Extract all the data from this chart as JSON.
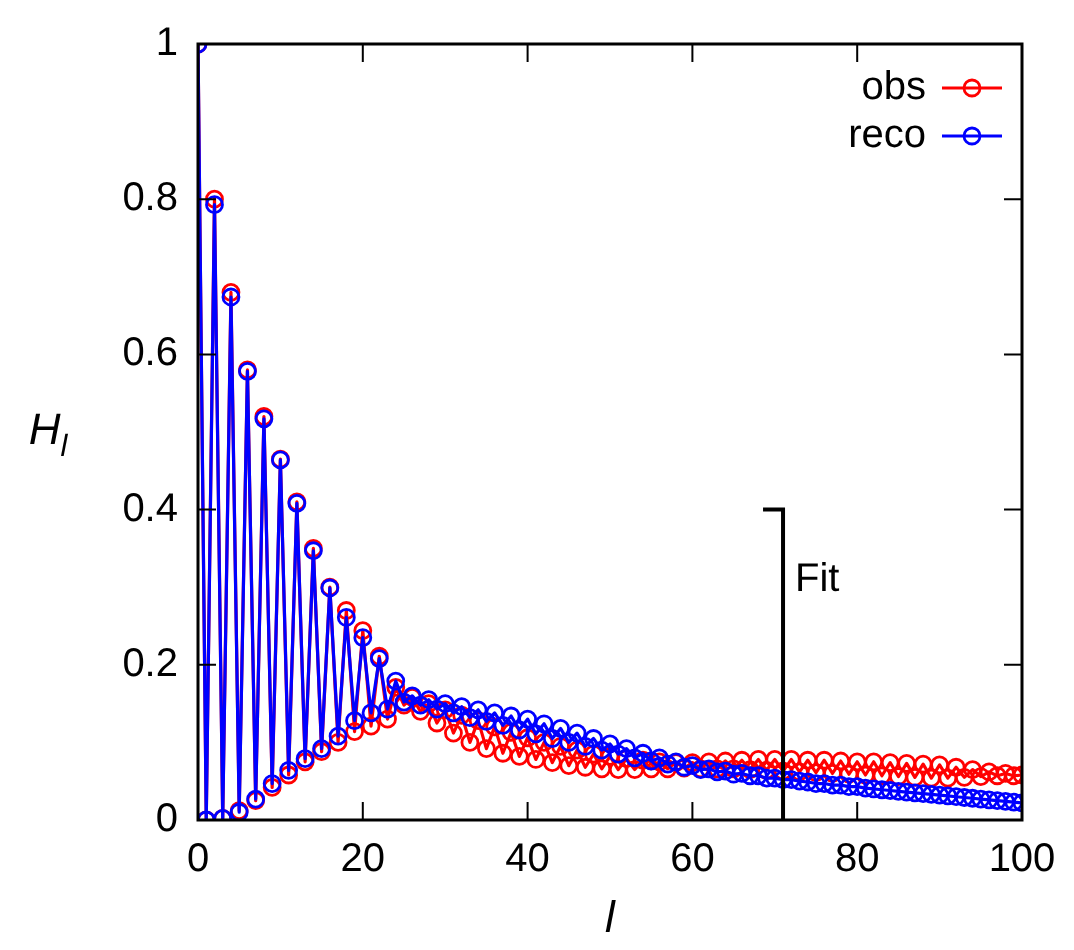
{
  "chart_data": {
    "type": "line",
    "xlabel": "l",
    "ylabel": "H$_{l}$",
    "xlim": [
      0,
      100
    ],
    "ylim": [
      0,
      1
    ],
    "xticks": [
      0,
      20,
      40,
      60,
      80,
      100
    ],
    "yticks": [
      0,
      0.2,
      0.4,
      0.6,
      0.8,
      1
    ],
    "marker": "circle",
    "legend": "top right",
    "x": [
      0,
      1,
      2,
      3,
      4,
      5,
      6,
      7,
      8,
      9,
      10,
      11,
      12,
      13,
      14,
      15,
      16,
      17,
      18,
      19,
      20,
      21,
      22,
      23,
      24,
      25,
      26,
      27,
      28,
      29,
      30,
      31,
      32,
      33,
      34,
      35,
      36,
      37,
      38,
      39,
      40,
      41,
      42,
      43,
      44,
      45,
      46,
      47,
      48,
      49,
      50,
      51,
      52,
      53,
      54,
      55,
      56,
      57,
      58,
      59,
      60,
      61,
      62,
      63,
      64,
      65,
      66,
      67,
      68,
      69,
      70,
      71,
      72,
      73,
      74,
      75,
      76,
      77,
      78,
      79,
      80,
      81,
      82,
      83,
      84,
      85,
      86,
      87,
      88,
      89,
      90,
      91,
      92,
      93,
      94,
      95,
      96,
      97,
      98,
      99,
      100
    ],
    "series": [
      {
        "name": "obs",
        "color": "#ff0000",
        "values": [
          1,
          0,
          0.8,
          0.002,
          0.68,
          0.012,
          0.58,
          0.025,
          0.52,
          0.042,
          0.465,
          0.058,
          0.41,
          0.075,
          0.35,
          0.088,
          0.3,
          0.1,
          0.27,
          0.114,
          0.244,
          0.121,
          0.211,
          0.13,
          0.171,
          0.148,
          0.158,
          0.14,
          0.15,
          0.125,
          0.142,
          0.112,
          0.135,
          0.1,
          0.128,
          0.092,
          0.12,
          0.086,
          0.113,
          0.082,
          0.106,
          0.078,
          0.1,
          0.074,
          0.095,
          0.07,
          0.09,
          0.068,
          0.085,
          0.066,
          0.082,
          0.065,
          0.079,
          0.065,
          0.077,
          0.066,
          0.075,
          0.066,
          0.074,
          0.067,
          0.074,
          0.066,
          0.075,
          0.066,
          0.076,
          0.066,
          0.077,
          0.065,
          0.078,
          0.064,
          0.078,
          0.063,
          0.078,
          0.062,
          0.077,
          0.061,
          0.077,
          0.06,
          0.076,
          0.059,
          0.075,
          0.058,
          0.075,
          0.057,
          0.074,
          0.056,
          0.073,
          0.055,
          0.072,
          0.054,
          0.071,
          0.054,
          0.068,
          0.055,
          0.065,
          0.056,
          0.062,
          0.057,
          0.06,
          0.057,
          0.058
        ]
      },
      {
        "name": "reco",
        "color": "#0000ff",
        "values": [
          1,
          0,
          0.793,
          0.002,
          0.674,
          0.01,
          0.578,
          0.027,
          0.517,
          0.047,
          0.464,
          0.064,
          0.408,
          0.079,
          0.347,
          0.092,
          0.299,
          0.108,
          0.261,
          0.128,
          0.235,
          0.138,
          0.208,
          0.143,
          0.179,
          0.152,
          0.16,
          0.148,
          0.155,
          0.143,
          0.15,
          0.138,
          0.146,
          0.132,
          0.142,
          0.127,
          0.138,
          0.122,
          0.134,
          0.116,
          0.13,
          0.111,
          0.124,
          0.105,
          0.118,
          0.1,
          0.112,
          0.095,
          0.105,
          0.09,
          0.098,
          0.085,
          0.092,
          0.08,
          0.086,
          0.076,
          0.08,
          0.072,
          0.075,
          0.068,
          0.07,
          0.065,
          0.066,
          0.062,
          0.063,
          0.059,
          0.06,
          0.057,
          0.057,
          0.054,
          0.054,
          0.052,
          0.052,
          0.05,
          0.049,
          0.047,
          0.047,
          0.045,
          0.045,
          0.043,
          0.043,
          0.041,
          0.04,
          0.039,
          0.038,
          0.037,
          0.036,
          0.035,
          0.034,
          0.033,
          0.032,
          0.031,
          0.03,
          0.029,
          0.028,
          0.027,
          0.026,
          0.025,
          0.024,
          0.023,
          0.022
        ]
      }
    ],
    "ref_lines": [
      {
        "axis": "x",
        "value": 71,
        "label": "Fit"
      }
    ]
  }
}
